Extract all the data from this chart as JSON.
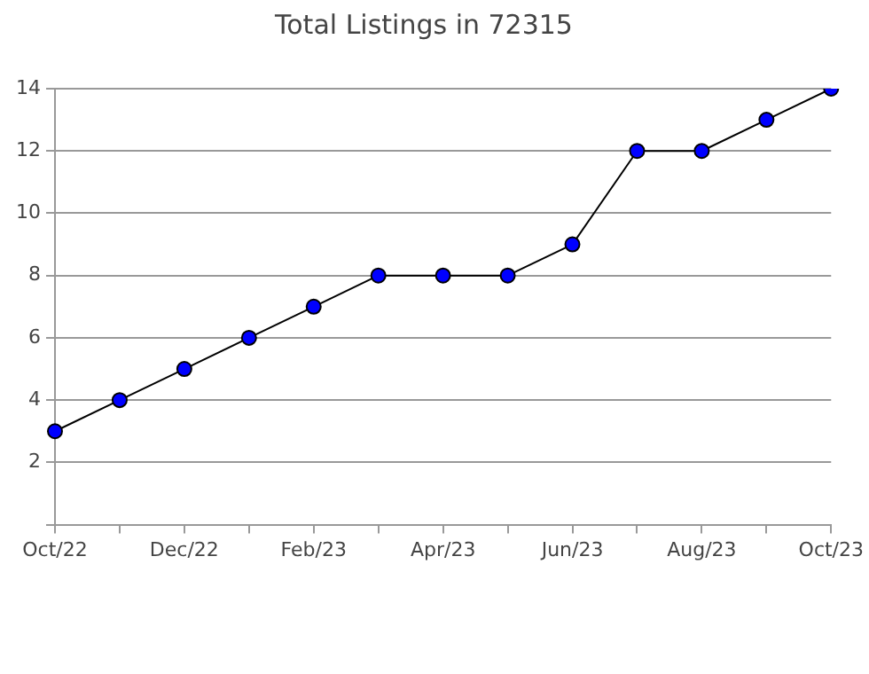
{
  "chart_data": {
    "type": "line",
    "title": "Total Listings in 72315",
    "categories": [
      "Oct/22",
      null,
      "Dec/22",
      null,
      "Feb/23",
      null,
      "Apr/23",
      null,
      "Jun/23",
      null,
      "Aug/23",
      null,
      "Oct/23"
    ],
    "series": [
      {
        "color": "#0000ff",
        "values": [
          3,
          4,
          5,
          6,
          7,
          8,
          8,
          8,
          9,
          12,
          12,
          13,
          14
        ]
      }
    ],
    "ylim": [
      0,
      14
    ],
    "yticks": [
      {
        "value": 0,
        "label": null
      },
      2,
      4,
      6,
      8,
      10,
      12,
      14
    ],
    "grid": "y",
    "legend": false,
    "marker": "circle",
    "line_style": "solid"
  }
}
